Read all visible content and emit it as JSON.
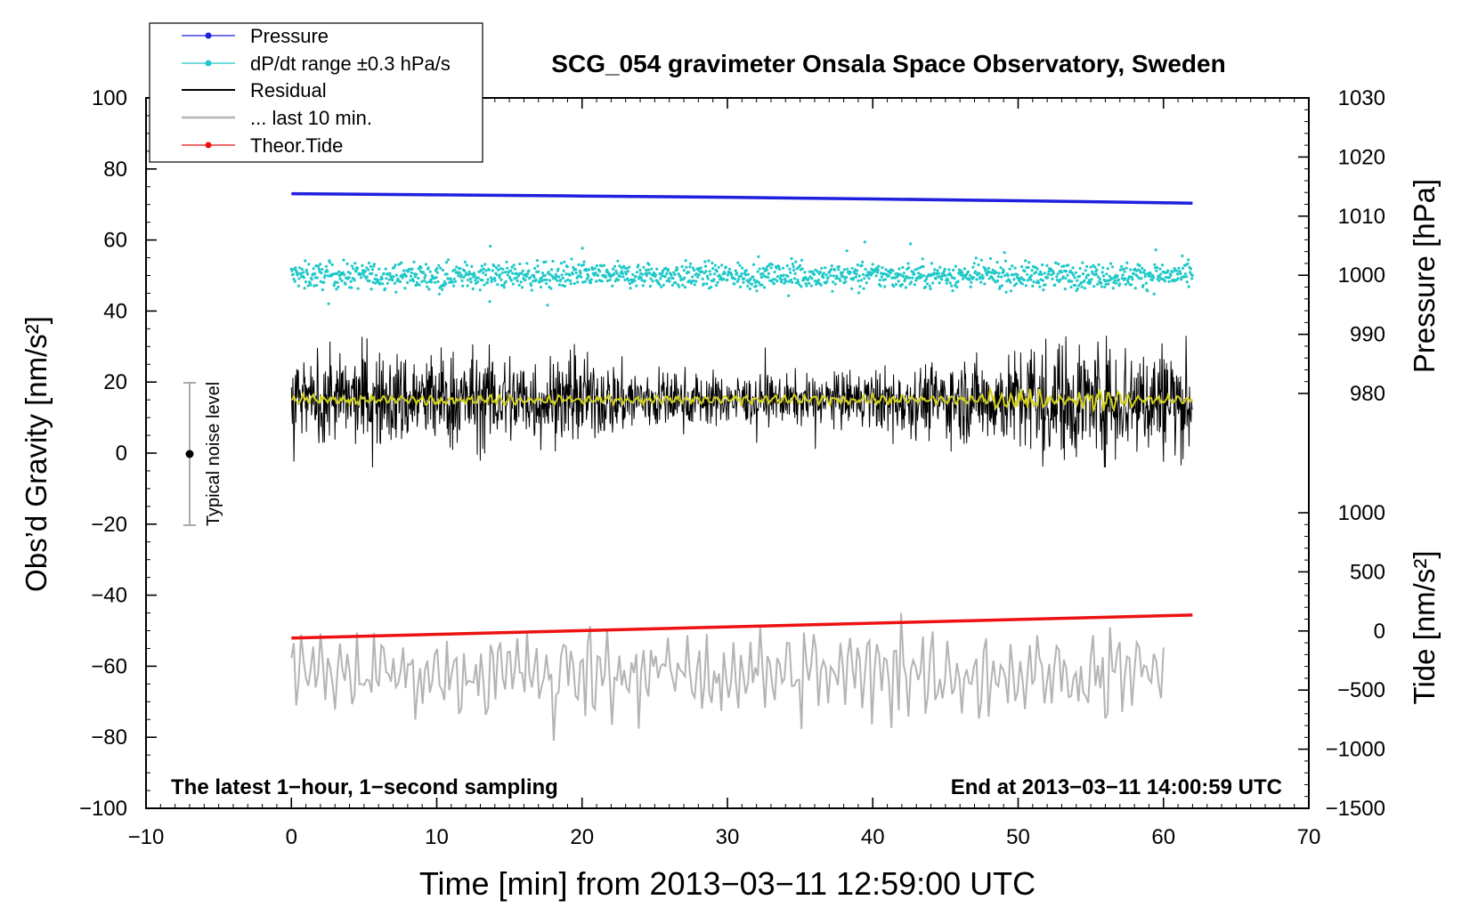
{
  "chart_data": {
    "type": "line",
    "title": "SCG_054 gravimeter Onsala Space Observatory, Sweden",
    "xlabel": "Time [min] from 2013−03−11 12:59:00 UTC",
    "ylabel_left": "Obs’d Gravity [nm/s²]",
    "ylabel_right_top": "Pressure [hPa]",
    "ylabel_right_bottom": "Tide [nm/s²]",
    "xlim": [
      -10,
      70
    ],
    "ylim": [
      -100,
      100
    ],
    "pressure_lim": [
      970,
      1030
    ],
    "tide_lim": [
      -1500,
      1500
    ],
    "x_ticks": [
      -10,
      0,
      10,
      20,
      30,
      40,
      50,
      60,
      70
    ],
    "x_tick_labels": [
      "−10",
      "0",
      "10",
      "20",
      "30",
      "40",
      "50",
      "60",
      "70"
    ],
    "y_ticks": [
      -100,
      -80,
      -60,
      -40,
      -20,
      0,
      20,
      40,
      60,
      80,
      100
    ],
    "y_tick_labels": [
      "−100",
      "−80",
      "−60",
      "−40",
      "−20",
      "0",
      "20",
      "40",
      "60",
      "80",
      "100"
    ],
    "pressure_ticks": [
      980,
      990,
      1000,
      1010,
      1020,
      1030
    ],
    "pressure_tick_labels": [
      "980",
      "990",
      "1000",
      "1010",
      "1020",
      "1030"
    ],
    "tide_ticks": [
      -1500,
      -1000,
      -500,
      0,
      500,
      1000
    ],
    "tide_tick_labels": [
      "−1500",
      "−1000",
      "−500",
      "0",
      "500",
      "1000"
    ],
    "legend": {
      "position": "top-left",
      "entries": [
        {
          "label": "Pressure",
          "color": "#1f1fe0",
          "marker": true
        },
        {
          "label": "dP/dt range ±0.3 hPa/s",
          "color": "#1fc8c8",
          "marker": true
        },
        {
          "label": "Residual",
          "color": "#000000",
          "marker": false
        },
        {
          "label": "... last 10 min.",
          "color": "#b4b4b4",
          "marker": false
        },
        {
          "label": "Theor.Tide",
          "color": "#ee1111",
          "marker": true
        }
      ]
    },
    "annotations": {
      "bottom_left": "The latest 1−hour, 1−second sampling",
      "bottom_right": "End at 2013−03−11 14:00:59 UTC",
      "noise_label": "Typical noise level",
      "noise_bar": {
        "x": -7,
        "center": 0,
        "range": [
          -20,
          20
        ]
      }
    },
    "series": [
      {
        "name": "Pressure",
        "color": "#1f1fe0",
        "axis": "pressure",
        "x": [
          0,
          10,
          20,
          30,
          40,
          50,
          62
        ],
        "values": [
          1013.8,
          1013.6,
          1013.4,
          1013.2,
          1012.9,
          1012.6,
          1012.2
        ]
      },
      {
        "name": "dP/dt range ±0.3 hPa/s",
        "color": "#1fc8c8",
        "axis": "gravity",
        "x_range": [
          0,
          62
        ],
        "center": 50,
        "spread": 3,
        "outliers": 12
      },
      {
        "name": "Residual",
        "color": "#000000",
        "axis": "gravity",
        "x_range": [
          0,
          62
        ],
        "center": 15,
        "amplitude": 6,
        "max": 33,
        "min": -4
      },
      {
        "name": "Residual (smoothed)",
        "color": "#d2d21e",
        "axis": "gravity",
        "x_range": [
          0,
          62
        ],
        "center": 15,
        "amplitude": 1.5
      },
      {
        "name": "... last 10 min.",
        "color": "#b4b4b4",
        "axis": "gravity",
        "x_range": [
          0,
          60
        ],
        "center": -62,
        "min": -81,
        "max": -45
      },
      {
        "name": "Theor.Tide",
        "color": "#ee1111",
        "axis": "tide",
        "x": [
          0,
          62
        ],
        "values": [
          -60,
          135
        ]
      }
    ]
  }
}
